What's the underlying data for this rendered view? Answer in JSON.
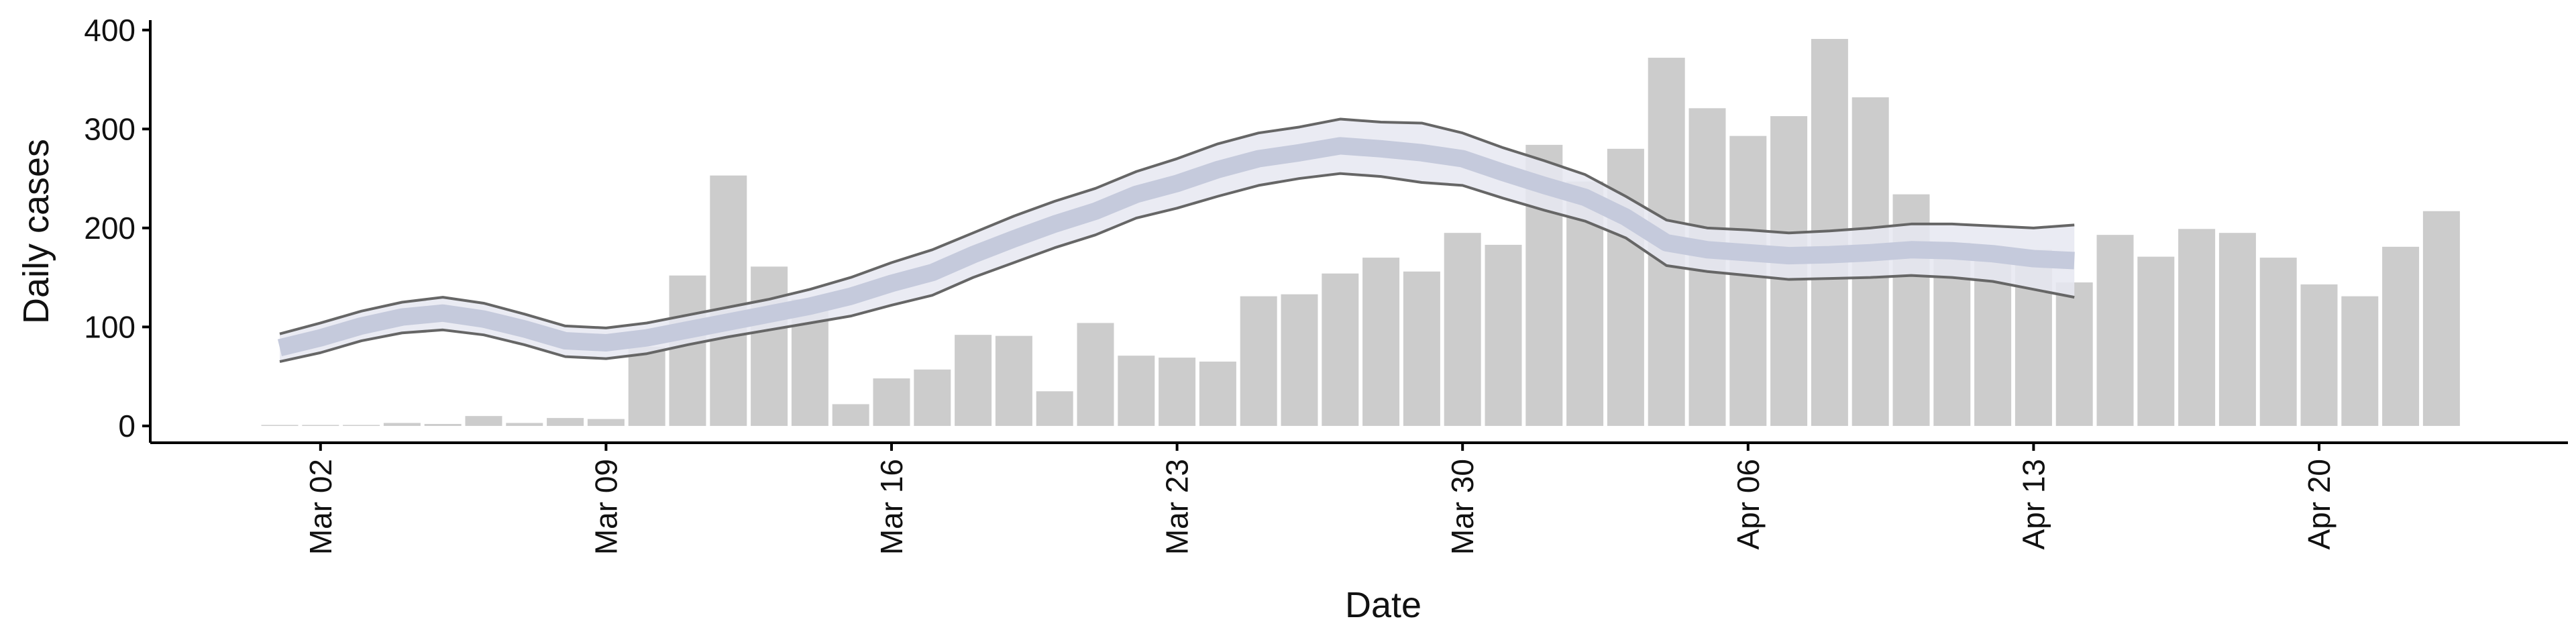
{
  "chart_data": {
    "type": "bar",
    "xlabel": "Date",
    "ylabel": "Daily cases",
    "categories": [
      null,
      "Mar 02",
      null,
      null,
      null,
      null,
      null,
      null,
      "Mar 09",
      null,
      null,
      null,
      null,
      null,
      null,
      "Mar 16",
      null,
      null,
      null,
      null,
      null,
      null,
      "Mar 23",
      null,
      null,
      null,
      null,
      null,
      null,
      "Mar 30",
      null,
      null,
      null,
      null,
      null,
      null,
      "Apr 06",
      null,
      null,
      null,
      null,
      null,
      null,
      "Apr 13",
      null,
      null,
      null,
      null,
      null,
      null,
      "Apr 20",
      null,
      null,
      null
    ],
    "values": [
      1,
      1,
      1,
      3,
      2,
      10,
      3,
      8,
      7,
      80,
      152,
      253,
      161,
      128,
      22,
      48,
      57,
      92,
      91,
      35,
      104,
      71,
      69,
      65,
      131,
      133,
      154,
      170,
      156,
      195,
      183,
      284,
      247,
      280,
      372,
      321,
      293,
      313,
      391,
      332,
      234,
      185,
      180,
      178,
      145,
      193,
      171,
      199,
      195,
      170,
      143,
      131,
      181,
      217
    ],
    "color": "#cccccc",
    "series": [
      {
        "color": "#c5cadc",
        "values": [
          79,
          89,
          101,
          110,
          114,
          108,
          98,
          86,
          84,
          89,
          97,
          105,
          113,
          121,
          131,
          144,
          155,
          173,
          189,
          204,
          217,
          234,
          245,
          259,
          270,
          276,
          283,
          280,
          276,
          270,
          256,
          243,
          231,
          211,
          185,
          178,
          175,
          172,
          173,
          175,
          178,
          177,
          174,
          169,
          167,
          null,
          null,
          null,
          null,
          null,
          null,
          null,
          null,
          null
        ]
      },
      {
        "color": "#666666",
        "values": [
          93,
          104,
          116,
          125,
          130,
          124,
          113,
          101,
          99,
          104,
          112,
          120,
          128,
          138,
          150,
          165,
          178,
          195,
          212,
          227,
          240,
          257,
          270,
          285,
          296,
          302,
          310,
          307,
          306,
          296,
          281,
          268,
          254,
          232,
          208,
          200,
          198,
          195,
          197,
          200,
          204,
          204,
          202,
          200,
          203,
          null,
          null,
          null,
          null,
          null,
          null,
          null,
          null,
          null
        ]
      },
      {
        "color": "#666666",
        "values": [
          65,
          74,
          86,
          94,
          97,
          92,
          82,
          70,
          68,
          73,
          82,
          90,
          97,
          104,
          111,
          122,
          132,
          150,
          165,
          180,
          193,
          210,
          220,
          232,
          243,
          250,
          255,
          252,
          246,
          243,
          230,
          218,
          207,
          190,
          162,
          156,
          152,
          148,
          149,
          150,
          152,
          150,
          146,
          138,
          130,
          null,
          null,
          null,
          null,
          null,
          null,
          null,
          null,
          null
        ]
      }
    ],
    "band_color": "#e6e8f1",
    "ylim": [
      -17,
      410
    ],
    "yticks": [
      0,
      100,
      200,
      300,
      400
    ],
    "grid": false
  }
}
